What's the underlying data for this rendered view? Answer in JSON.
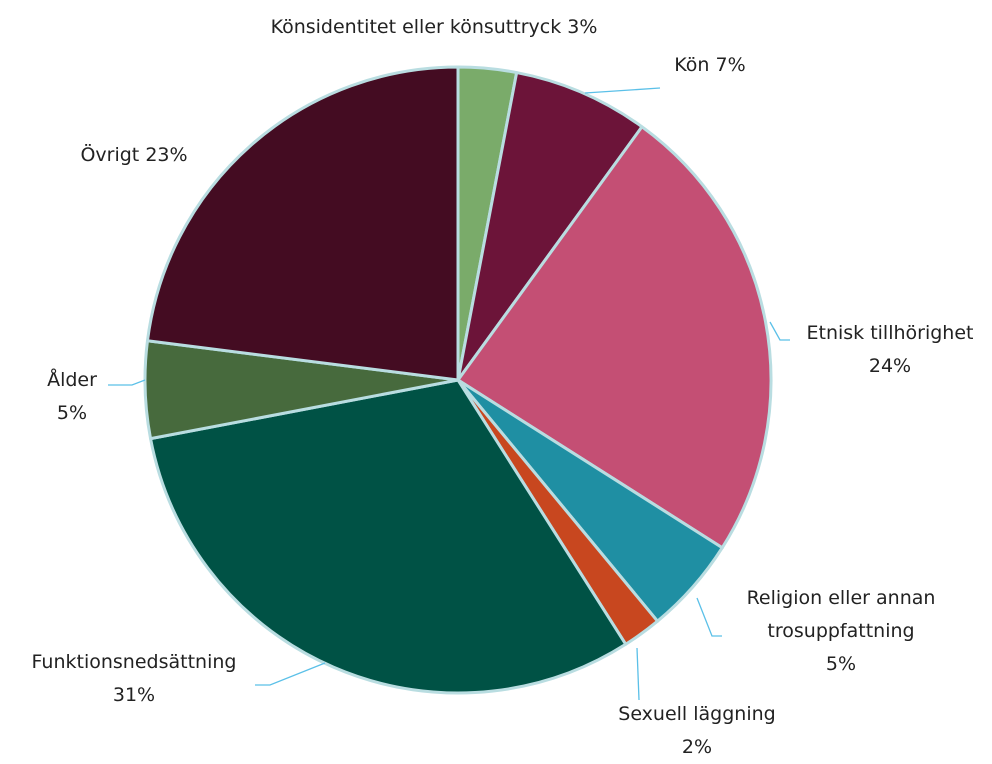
{
  "chart_data": {
    "type": "pie",
    "categories": [
      "Könsidentitet eller könsuttryck",
      "Kön",
      "Etnisk tillhörighet",
      "Religion eller annan trosuppfattning",
      "Sexuell läggning",
      "Funktionsnedsättning",
      "Ålder",
      "Övrigt"
    ],
    "values": [
      3,
      7,
      24,
      5,
      2,
      31,
      5,
      23
    ],
    "value_labels": [
      "3%",
      "7%",
      "24%",
      "5%",
      "2%",
      "31%",
      "5%",
      "23%"
    ],
    "colors": [
      "#7aab6a",
      "#6c1439",
      "#c44f74",
      "#1f8fa3",
      "#c8471f",
      "#005245",
      "#476a3d",
      "#440c22"
    ]
  }
}
